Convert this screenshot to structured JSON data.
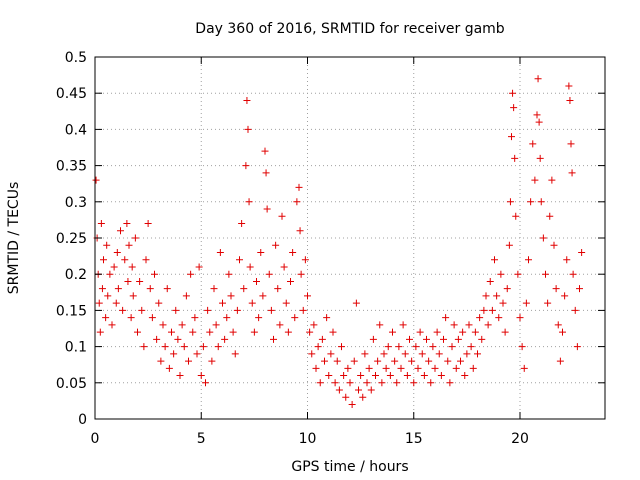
{
  "chart_data": {
    "type": "scatter",
    "title": "Day 360 of 2016, SRMTID for receiver gamb",
    "xlabel": "GPS time / hours",
    "ylabel": "SRMTID / TECUs",
    "xlim": [
      0,
      24
    ],
    "ylim": [
      0,
      0.5
    ],
    "x_ticks": [
      0,
      5,
      10,
      15,
      20
    ],
    "x_tick_labels": [
      "0",
      "5",
      "10",
      "15",
      "20"
    ],
    "y_ticks": [
      0,
      0.05,
      0.1,
      0.15,
      0.2,
      0.25,
      0.3,
      0.35,
      0.4,
      0.45,
      0.5
    ],
    "y_tick_labels": [
      "0",
      "0.05",
      "0.1",
      "0.15",
      "0.2",
      "0.25",
      "0.3",
      "0.35",
      "0.4",
      "0.45",
      "0.5"
    ],
    "grid": true,
    "marker": "plus",
    "color": "#e00000",
    "series": [
      {
        "name": "SRMTID",
        "points": [
          [
            0.05,
            0.33
          ],
          [
            0.1,
            0.25
          ],
          [
            0.15,
            0.2
          ],
          [
            0.2,
            0.16
          ],
          [
            0.25,
            0.12
          ],
          [
            0.3,
            0.27
          ],
          [
            0.35,
            0.18
          ],
          [
            0.4,
            0.22
          ],
          [
            0.5,
            0.14
          ],
          [
            0.55,
            0.24
          ],
          [
            0.6,
            0.17
          ],
          [
            0.7,
            0.2
          ],
          [
            0.8,
            0.13
          ],
          [
            0.9,
            0.21
          ],
          [
            1.0,
            0.16
          ],
          [
            1.05,
            0.23
          ],
          [
            1.1,
            0.18
          ],
          [
            1.2,
            0.26
          ],
          [
            1.3,
            0.15
          ],
          [
            1.4,
            0.22
          ],
          [
            1.5,
            0.27
          ],
          [
            1.55,
            0.19
          ],
          [
            1.6,
            0.24
          ],
          [
            1.7,
            0.14
          ],
          [
            1.75,
            0.21
          ],
          [
            1.8,
            0.17
          ],
          [
            1.9,
            0.25
          ],
          [
            2.0,
            0.12
          ],
          [
            2.1,
            0.19
          ],
          [
            2.2,
            0.15
          ],
          [
            2.3,
            0.1
          ],
          [
            2.4,
            0.22
          ],
          [
            2.5,
            0.27
          ],
          [
            2.6,
            0.18
          ],
          [
            2.7,
            0.14
          ],
          [
            2.8,
            0.2
          ],
          [
            2.9,
            0.11
          ],
          [
            3.0,
            0.16
          ],
          [
            3.1,
            0.08
          ],
          [
            3.2,
            0.13
          ],
          [
            3.3,
            0.1
          ],
          [
            3.4,
            0.18
          ],
          [
            3.5,
            0.07
          ],
          [
            3.6,
            0.12
          ],
          [
            3.7,
            0.09
          ],
          [
            3.8,
            0.15
          ],
          [
            3.9,
            0.11
          ],
          [
            4.0,
            0.06
          ],
          [
            4.1,
            0.13
          ],
          [
            4.2,
            0.1
          ],
          [
            4.3,
            0.17
          ],
          [
            4.4,
            0.08
          ],
          [
            4.5,
            0.2
          ],
          [
            4.6,
            0.12
          ],
          [
            4.7,
            0.14
          ],
          [
            4.8,
            0.09
          ],
          [
            4.9,
            0.21
          ],
          [
            5.0,
            0.06
          ],
          [
            5.1,
            0.1
          ],
          [
            5.2,
            0.05
          ],
          [
            5.3,
            0.15
          ],
          [
            5.4,
            0.12
          ],
          [
            5.5,
            0.08
          ],
          [
            5.6,
            0.18
          ],
          [
            5.7,
            0.13
          ],
          [
            5.8,
            0.1
          ],
          [
            5.9,
            0.23
          ],
          [
            6.0,
            0.16
          ],
          [
            6.1,
            0.11
          ],
          [
            6.2,
            0.14
          ],
          [
            6.3,
            0.2
          ],
          [
            6.4,
            0.17
          ],
          [
            6.5,
            0.12
          ],
          [
            6.6,
            0.09
          ],
          [
            6.7,
            0.15
          ],
          [
            6.8,
            0.22
          ],
          [
            6.9,
            0.27
          ],
          [
            7.0,
            0.18
          ],
          [
            7.1,
            0.35
          ],
          [
            7.15,
            0.44
          ],
          [
            7.2,
            0.4
          ],
          [
            7.25,
            0.3
          ],
          [
            7.3,
            0.21
          ],
          [
            7.4,
            0.16
          ],
          [
            7.5,
            0.12
          ],
          [
            7.6,
            0.19
          ],
          [
            7.7,
            0.14
          ],
          [
            7.8,
            0.23
          ],
          [
            7.9,
            0.17
          ],
          [
            8.0,
            0.37
          ],
          [
            8.05,
            0.34
          ],
          [
            8.1,
            0.29
          ],
          [
            8.2,
            0.2
          ],
          [
            8.3,
            0.15
          ],
          [
            8.4,
            0.11
          ],
          [
            8.5,
            0.24
          ],
          [
            8.6,
            0.18
          ],
          [
            8.7,
            0.13
          ],
          [
            8.8,
            0.28
          ],
          [
            8.9,
            0.21
          ],
          [
            9.0,
            0.16
          ],
          [
            9.1,
            0.12
          ],
          [
            9.2,
            0.19
          ],
          [
            9.3,
            0.23
          ],
          [
            9.4,
            0.14
          ],
          [
            9.5,
            0.3
          ],
          [
            9.6,
            0.32
          ],
          [
            9.65,
            0.26
          ],
          [
            9.7,
            0.2
          ],
          [
            9.8,
            0.15
          ],
          [
            9.9,
            0.22
          ],
          [
            10.0,
            0.17
          ],
          [
            10.1,
            0.12
          ],
          [
            10.2,
            0.09
          ],
          [
            10.3,
            0.13
          ],
          [
            10.4,
            0.07
          ],
          [
            10.5,
            0.1
          ],
          [
            10.6,
            0.05
          ],
          [
            10.7,
            0.11
          ],
          [
            10.8,
            0.08
          ],
          [
            10.9,
            0.14
          ],
          [
            11.0,
            0.06
          ],
          [
            11.1,
            0.09
          ],
          [
            11.2,
            0.12
          ],
          [
            11.3,
            0.05
          ],
          [
            11.4,
            0.08
          ],
          [
            11.5,
            0.04
          ],
          [
            11.6,
            0.1
          ],
          [
            11.7,
            0.06
          ],
          [
            11.8,
            0.03
          ],
          [
            11.9,
            0.07
          ],
          [
            12.0,
            0.05
          ],
          [
            12.1,
            0.02
          ],
          [
            12.2,
            0.08
          ],
          [
            12.3,
            0.16
          ],
          [
            12.4,
            0.04
          ],
          [
            12.5,
            0.06
          ],
          [
            12.6,
            0.03
          ],
          [
            12.7,
            0.09
          ],
          [
            12.8,
            0.05
          ],
          [
            12.9,
            0.07
          ],
          [
            13.0,
            0.04
          ],
          [
            13.1,
            0.11
          ],
          [
            13.2,
            0.06
          ],
          [
            13.3,
            0.08
          ],
          [
            13.4,
            0.13
          ],
          [
            13.5,
            0.05
          ],
          [
            13.6,
            0.09
          ],
          [
            13.7,
            0.07
          ],
          [
            13.8,
            0.1
          ],
          [
            13.9,
            0.06
          ],
          [
            14.0,
            0.12
          ],
          [
            14.1,
            0.08
          ],
          [
            14.2,
            0.05
          ],
          [
            14.3,
            0.1
          ],
          [
            14.4,
            0.07
          ],
          [
            14.5,
            0.13
          ],
          [
            14.6,
            0.09
          ],
          [
            14.7,
            0.06
          ],
          [
            14.8,
            0.11
          ],
          [
            14.9,
            0.08
          ],
          [
            15.0,
            0.05
          ],
          [
            15.1,
            0.1
          ],
          [
            15.2,
            0.07
          ],
          [
            15.3,
            0.12
          ],
          [
            15.4,
            0.09
          ],
          [
            15.5,
            0.06
          ],
          [
            15.6,
            0.11
          ],
          [
            15.7,
            0.08
          ],
          [
            15.8,
            0.05
          ],
          [
            15.9,
            0.1
          ],
          [
            16.0,
            0.07
          ],
          [
            16.1,
            0.12
          ],
          [
            16.2,
            0.09
          ],
          [
            16.3,
            0.06
          ],
          [
            16.4,
            0.11
          ],
          [
            16.5,
            0.14
          ],
          [
            16.6,
            0.08
          ],
          [
            16.7,
            0.05
          ],
          [
            16.8,
            0.1
          ],
          [
            16.9,
            0.13
          ],
          [
            17.0,
            0.07
          ],
          [
            17.1,
            0.11
          ],
          [
            17.2,
            0.08
          ],
          [
            17.3,
            0.12
          ],
          [
            17.4,
            0.06
          ],
          [
            17.5,
            0.09
          ],
          [
            17.6,
            0.13
          ],
          [
            17.7,
            0.1
          ],
          [
            17.8,
            0.07
          ],
          [
            17.9,
            0.12
          ],
          [
            18.0,
            0.09
          ],
          [
            18.1,
            0.14
          ],
          [
            18.2,
            0.11
          ],
          [
            18.3,
            0.15
          ],
          [
            18.4,
            0.17
          ],
          [
            18.5,
            0.13
          ],
          [
            18.6,
            0.19
          ],
          [
            18.7,
            0.15
          ],
          [
            18.8,
            0.22
          ],
          [
            18.9,
            0.17
          ],
          [
            19.0,
            0.14
          ],
          [
            19.1,
            0.2
          ],
          [
            19.2,
            0.16
          ],
          [
            19.3,
            0.12
          ],
          [
            19.4,
            0.18
          ],
          [
            19.5,
            0.24
          ],
          [
            19.55,
            0.3
          ],
          [
            19.6,
            0.39
          ],
          [
            19.65,
            0.45
          ],
          [
            19.7,
            0.43
          ],
          [
            19.75,
            0.36
          ],
          [
            19.8,
            0.28
          ],
          [
            19.9,
            0.2
          ],
          [
            20.0,
            0.14
          ],
          [
            20.1,
            0.1
          ],
          [
            20.2,
            0.07
          ],
          [
            20.3,
            0.16
          ],
          [
            20.4,
            0.22
          ],
          [
            20.5,
            0.3
          ],
          [
            20.6,
            0.38
          ],
          [
            20.7,
            0.33
          ],
          [
            20.8,
            0.42
          ],
          [
            20.85,
            0.47
          ],
          [
            20.9,
            0.41
          ],
          [
            20.95,
            0.36
          ],
          [
            21.0,
            0.3
          ],
          [
            21.1,
            0.25
          ],
          [
            21.2,
            0.2
          ],
          [
            21.3,
            0.16
          ],
          [
            21.4,
            0.28
          ],
          [
            21.5,
            0.33
          ],
          [
            21.6,
            0.24
          ],
          [
            21.7,
            0.18
          ],
          [
            21.8,
            0.13
          ],
          [
            21.9,
            0.08
          ],
          [
            22.0,
            0.12
          ],
          [
            22.1,
            0.17
          ],
          [
            22.2,
            0.22
          ],
          [
            22.3,
            0.46
          ],
          [
            22.35,
            0.44
          ],
          [
            22.4,
            0.38
          ],
          [
            22.45,
            0.34
          ],
          [
            22.5,
            0.2
          ],
          [
            22.6,
            0.15
          ],
          [
            22.7,
            0.1
          ],
          [
            22.8,
            0.18
          ],
          [
            22.9,
            0.23
          ]
        ]
      }
    ]
  }
}
